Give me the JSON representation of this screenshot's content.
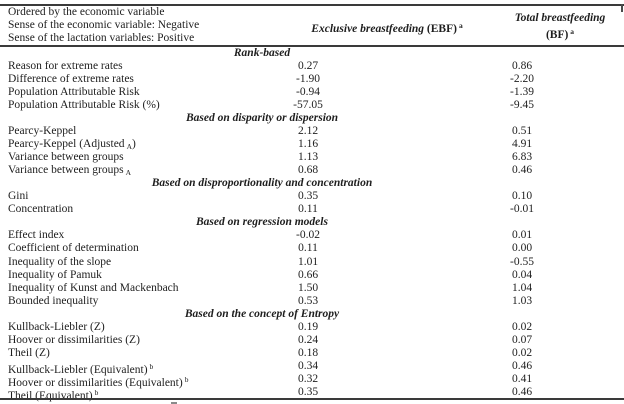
{
  "colors": {
    "background": "#ffffff",
    "text": "#1e1e1e",
    "rule": "#3a3a3a"
  },
  "header": {
    "left_lines": [
      "Ordered by the economic variable",
      "Sense of the economic variable: Negative",
      "Sense of the lactation variables: Positive"
    ],
    "col_ebf": {
      "name": "Exclusive breastfeeding",
      "abbrev": "(EBF)",
      "footnote_mark": "a"
    },
    "col_bf": {
      "name": "Total breastfeeding",
      "abbrev": "(BF)",
      "footnote_mark": "a"
    }
  },
  "chart_data": {
    "type": "table",
    "columns": [
      "Indicator",
      "Exclusive breastfeeding (EBF)",
      "Total breastfeeding (BF)"
    ],
    "rows": [
      {
        "type": "section",
        "label": "Rank-based"
      },
      {
        "type": "data",
        "label": "Reason for extreme rates",
        "ebf": "0.27",
        "bf": "0.86"
      },
      {
        "type": "data",
        "label": "Difference of extreme rates",
        "ebf": "-1.90",
        "bf": "-2.20"
      },
      {
        "type": "data",
        "label": "Population Attributable Risk",
        "ebf": "-0.94",
        "bf": "-1.39"
      },
      {
        "type": "data",
        "label": "Population Attributable Risk (%)",
        "ebf": "-57.05",
        "bf": "-9.45"
      },
      {
        "type": "section",
        "label": "Based on disparity or dispersion"
      },
      {
        "type": "data",
        "label": "Pearcy-Keppel",
        "ebf": "2.12",
        "bf": "0.51"
      },
      {
        "type": "data",
        "label": "Pearcy-Keppel (Adjusted",
        "sub": "A",
        "label_post": ")",
        "ebf": "1.16",
        "bf": "4.91"
      },
      {
        "type": "data",
        "label": "Variance between groups",
        "ebf": "1.13",
        "bf": "6.83"
      },
      {
        "type": "data",
        "label": "Variance between groups",
        "sub": "A",
        "ebf": "0.68",
        "bf": "0.46"
      },
      {
        "type": "section",
        "label": "Based on disproportionality and concentration"
      },
      {
        "type": "data",
        "label": "Gini",
        "ebf": "0.35",
        "bf": "0.10"
      },
      {
        "type": "data",
        "label": "Concentration",
        "ebf": "0.11",
        "bf": "-0.01"
      },
      {
        "type": "section",
        "label": "Based on regression models"
      },
      {
        "type": "data",
        "label": "Effect index",
        "ebf": "-0.02",
        "bf": "0.01"
      },
      {
        "type": "data",
        "label": "Coefficient of determination",
        "ebf": "0.11",
        "bf": "0.00"
      },
      {
        "type": "data",
        "label": "Inequality of the slope",
        "ebf": "1.01",
        "bf": "-0.55"
      },
      {
        "type": "data",
        "label": "Inequality of Pamuk",
        "ebf": "0.66",
        "bf": "0.04"
      },
      {
        "type": "data",
        "label": "Inequality of Kunst and Mackenbach",
        "ebf": "1.50",
        "bf": "1.04"
      },
      {
        "type": "data",
        "label": "Bounded inequality",
        "ebf": "0.53",
        "bf": "1.03"
      },
      {
        "type": "section",
        "label": "Based on the concept of Entropy"
      },
      {
        "type": "data",
        "label": "Kullback-Liebler (Z)",
        "ebf": "0.19",
        "bf": "0.02"
      },
      {
        "type": "data",
        "label": "Hoover or dissimilarities (Z)",
        "ebf": "0.24",
        "bf": "0.07"
      },
      {
        "type": "data",
        "label": "Theil (Z)",
        "ebf": "0.18",
        "bf": "0.02"
      },
      {
        "type": "data",
        "label": "Kullback-Liebler (Equivalent)",
        "sup": "b",
        "ebf": "0.34",
        "bf": "0.46"
      },
      {
        "type": "data",
        "label": "Hoover or dissimilarities (Equivalent)",
        "sup": "b",
        "ebf": "0.32",
        "bf": "0.41"
      },
      {
        "type": "data",
        "label": "Theil (Equivalent)",
        "sup": "b",
        "ebf": "0.35",
        "bf": "0.46"
      }
    ]
  }
}
